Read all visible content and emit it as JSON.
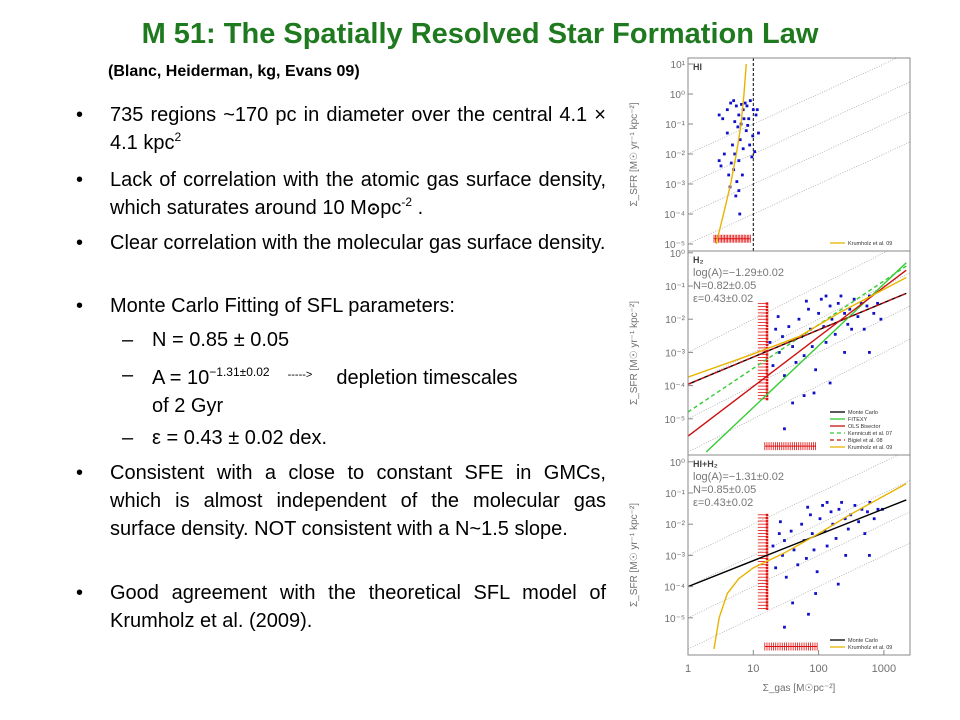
{
  "slide": {
    "title": "M 51: The Spatially Resolved Star Formation Law",
    "subtitle": "(Blanc, Heiderman, kg, Evans 09)",
    "bullets": [
      {
        "text": "735 regions ~170 pc in diameter over the central 4.1 × 4.1 kpc",
        "sup": "2"
      },
      {
        "text": "Lack of correlation with the atomic gas surface density, which saturates around 10 M",
        "sun": "⊙",
        "tail": "pc",
        "sup": "-2",
        "end": " ."
      },
      {
        "text": "Clear correlation with the molecular gas surface density."
      },
      {
        "text": "Monte Carlo Fitting of SFL parameters:"
      },
      {
        "text": "Consistent with a close to constant SFE in GMCs, which is almost independent of the molecular gas surface density. NOT consistent with a N~1.5 slope."
      },
      {
        "text": "Good agreement with the theoretical SFL model of Krumholz et al. (2009)."
      }
    ],
    "sub_bullets": [
      {
        "text": "N = 0.85 ± 0.05"
      },
      {
        "text": "A = 10",
        "sup": "−1.31±0.02",
        "arrow": "----->",
        "tail": "depletion timescales",
        "line2": "of  2 Gyr"
      },
      {
        "text": "ε = 0.43 ± 0.02 dex."
      }
    ],
    "bullet_glyph": "•",
    "dash_glyph": "–"
  },
  "chart_data": [
    {
      "type": "scatter",
      "panel": "HI",
      "title": "HI",
      "xscale": "log",
      "yscale": "log",
      "xlim": [
        1,
        2200
      ],
      "ylim": [
        1e-05,
        10
      ],
      "ylabel": "Σ_SFR [M☉ yr⁻¹ kpc⁻²]",
      "yticks": [
        "10¹",
        "10⁰",
        "10⁻¹",
        "10⁻²",
        "10⁻³",
        "10⁻⁴",
        "10⁻⁵"
      ],
      "annotations": [],
      "vline": {
        "x": 10,
        "style": "dashed",
        "color": "#000000"
      },
      "lines": [
        {
          "name": "Krumholz et al. 09",
          "color": "#e8b400",
          "dash": "",
          "points": [
            [
              2.7,
              1e-05
            ],
            [
              3.5,
              0.0001
            ],
            [
              4.5,
              0.001
            ],
            [
              5.5,
              0.01
            ],
            [
              6.5,
              0.1
            ],
            [
              7.2,
              1
            ],
            [
              7.8,
              10
            ]
          ]
        }
      ],
      "legend": [
        "Krumholz et al. 09"
      ],
      "points": [
        [
          3,
          0.2
        ],
        [
          3.4,
          0.15
        ],
        [
          4,
          0.3
        ],
        [
          4.5,
          0.5
        ],
        [
          5,
          0.6
        ],
        [
          5.5,
          0.4
        ],
        [
          6,
          0.2
        ],
        [
          6.5,
          0.1
        ],
        [
          7,
          0.3
        ],
        [
          7.5,
          0.5
        ],
        [
          8,
          0.4
        ],
        [
          8.5,
          0.15
        ],
        [
          9,
          0.6
        ],
        [
          10,
          0.3
        ],
        [
          11,
          0.2
        ],
        [
          12,
          0.05
        ],
        [
          4,
          0.05
        ],
        [
          4.8,
          0.02
        ],
        [
          5.2,
          0.01
        ],
        [
          5.8,
          0.08
        ],
        [
          6.3,
          0.03
        ],
        [
          7,
          0.015
        ],
        [
          7.8,
          0.06
        ],
        [
          8.8,
          0.02
        ],
        [
          9.5,
          0.008
        ],
        [
          10.5,
          0.012
        ],
        [
          3.2,
          0.004
        ],
        [
          3.6,
          0.01
        ],
        [
          4.2,
          0.002
        ],
        [
          4.6,
          0.005
        ],
        [
          5,
          0.003
        ],
        [
          5.6,
          0.0012
        ],
        [
          6,
          0.0006
        ],
        [
          6.8,
          0.002
        ],
        [
          5.4,
          0.0004
        ],
        [
          6.2,
          0.0001
        ],
        [
          4.4,
          0.0008
        ],
        [
          3,
          0.006
        ],
        [
          6,
          0.006
        ],
        [
          7.2,
          0.15
        ],
        [
          8.2,
          0.09
        ],
        [
          9.8,
          0.04
        ],
        [
          11.5,
          0.3
        ],
        [
          6.6,
          0.45
        ],
        [
          5.2,
          0.12
        ]
      ],
      "upper_limits": {
        "y": 1.5e-05,
        "x_range": [
          2.5,
          9
        ]
      }
    },
    {
      "type": "scatter",
      "panel": "H2",
      "title": "H₂",
      "xscale": "log",
      "yscale": "log",
      "xlim": [
        1,
        2200
      ],
      "ylim": [
        1e-05,
        10
      ],
      "ylabel": "Σ_SFR [M☉ yr⁻¹ kpc⁻²]",
      "yticks": [
        "10⁰",
        "10⁻¹",
        "10⁻²",
        "10⁻³",
        "10⁻⁴",
        "10⁻⁵"
      ],
      "annotations": [
        "log(A)=−1.29±0.02",
        "N=0.82±0.05",
        "ε=0.43±0.02"
      ],
      "lines": [
        {
          "name": "Monte Carlo",
          "color": "#000000",
          "dash": "",
          "points": [
            [
              1,
              0.0011
            ],
            [
              2200,
              0.6
            ]
          ]
        },
        {
          "name": "FITEXY",
          "color": "#33cc33",
          "dash": "",
          "points": [
            [
              1.9,
              1e-05
            ],
            [
              2200,
              5
            ]
          ]
        },
        {
          "name": "OLS Bisector",
          "color": "#cc1111",
          "dash": "",
          "points": [
            [
              1,
              3e-05
            ],
            [
              2200,
              3
            ]
          ]
        },
        {
          "name": "Kennicutt et al. 07",
          "color": "#33cc33",
          "dash": "4,3",
          "points": [
            [
              1,
              0.00016
            ],
            [
              2200,
              4
            ]
          ]
        },
        {
          "name": "Bigiel et al. 08",
          "color": "#cc1111",
          "dash": "4,3",
          "points": [
            [
              1,
              0.0011
            ],
            [
              2200,
              0.6
            ]
          ]
        },
        {
          "name": "Krumholz et al. 09",
          "color": "#e8b400",
          "dash": "",
          "points": [
            [
              1,
              0.0018
            ],
            [
              10,
              0.009
            ],
            [
              50,
              0.03
            ],
            [
              200,
              0.15
            ],
            [
              2200,
              1.8
            ]
          ]
        }
      ],
      "legend": [
        "Monte Carlo",
        "FITEXY",
        "OLS Bisector",
        "Kennicutt et al. 07",
        "Bigiel et al. 08",
        "Krumholz et al. 09"
      ],
      "points": [
        [
          18,
          0.02
        ],
        [
          20,
          0.004
        ],
        [
          22,
          0.05
        ],
        [
          25,
          0.01
        ],
        [
          28,
          0.03
        ],
        [
          30,
          0.002
        ],
        [
          35,
          0.06
        ],
        [
          40,
          0.015
        ],
        [
          45,
          0.005
        ],
        [
          50,
          0.1
        ],
        [
          55,
          0.03
        ],
        [
          60,
          0.008
        ],
        [
          70,
          0.2
        ],
        [
          75,
          0.05
        ],
        [
          80,
          0.015
        ],
        [
          90,
          0.003
        ],
        [
          100,
          0.15
        ],
        [
          110,
          0.4
        ],
        [
          120,
          0.06
        ],
        [
          130,
          0.02
        ],
        [
          150,
          0.25
        ],
        [
          160,
          0.1
        ],
        [
          180,
          0.035
        ],
        [
          200,
          0.3
        ],
        [
          220,
          0.5
        ],
        [
          250,
          0.15
        ],
        [
          280,
          0.07
        ],
        [
          300,
          0.2
        ],
        [
          350,
          0.4
        ],
        [
          400,
          0.12
        ],
        [
          450,
          0.3
        ],
        [
          500,
          0.05
        ],
        [
          550,
          0.25
        ],
        [
          600,
          0.5
        ],
        [
          700,
          0.15
        ],
        [
          800,
          0.3
        ],
        [
          900,
          0.1
        ],
        [
          60,
          0.0005
        ],
        [
          40,
          0.0003
        ],
        [
          30,
          5e-05
        ],
        [
          150,
          0.0012
        ],
        [
          250,
          0.01
        ],
        [
          600,
          0.01
        ],
        [
          85,
          0.0006
        ],
        [
          24,
          0.12
        ],
        [
          65,
          0.35
        ],
        [
          130,
          0.5
        ],
        [
          320,
          0.05
        ]
      ],
      "upper_limits_left": {
        "x": 15,
        "y_range": [
          0.0004,
          0.3
        ]
      },
      "upper_limits": {
        "y": 1.5e-05,
        "x_range": [
          15,
          90
        ]
      }
    },
    {
      "type": "scatter",
      "panel": "HI+H2",
      "title": "HI+H₂",
      "xscale": "log",
      "yscale": "log",
      "xlim": [
        1,
        2200
      ],
      "ylim": [
        1e-05,
        10
      ],
      "xlabel": "Σ_gas [M☉pc⁻²]",
      "ylabel": "Σ_SFR [M☉ yr⁻¹ kpc⁻²]",
      "xticks": [
        "1",
        "10",
        "100",
        "1000"
      ],
      "yticks": [
        "10⁰",
        "10⁻¹",
        "10⁻²",
        "10⁻³",
        "10⁻⁴",
        "10⁻⁵"
      ],
      "annotations": [
        "log(A)=−1.31±0.02",
        "N=0.85±0.05",
        "ε=0.43±0.02"
      ],
      "lines": [
        {
          "name": "Monte Carlo",
          "color": "#000000",
          "dash": "",
          "points": [
            [
              1,
              0.001
            ],
            [
              2200,
              0.6
            ]
          ]
        },
        {
          "name": "Krumholz et al. 09",
          "color": "#e8b400",
          "dash": "",
          "points": [
            [
              2.5,
              1e-05
            ],
            [
              3,
              0.0001
            ],
            [
              4,
              0.0006
            ],
            [
              6,
              0.0018
            ],
            [
              10,
              0.004
            ],
            [
              30,
              0.012
            ],
            [
              100,
              0.05
            ],
            [
              300,
              0.2
            ],
            [
              2200,
              2
            ]
          ]
        }
      ],
      "legend": [
        "Monte Carlo",
        "Krumholz et al. 09"
      ],
      "points": [
        [
          20,
          0.02
        ],
        [
          22,
          0.004
        ],
        [
          25,
          0.05
        ],
        [
          28,
          0.01
        ],
        [
          30,
          0.03
        ],
        [
          32,
          0.002
        ],
        [
          38,
          0.06
        ],
        [
          42,
          0.015
        ],
        [
          48,
          0.005
        ],
        [
          55,
          0.1
        ],
        [
          60,
          0.03
        ],
        [
          65,
          0.008
        ],
        [
          75,
          0.2
        ],
        [
          80,
          0.05
        ],
        [
          85,
          0.015
        ],
        [
          95,
          0.003
        ],
        [
          105,
          0.15
        ],
        [
          115,
          0.4
        ],
        [
          125,
          0.06
        ],
        [
          135,
          0.02
        ],
        [
          155,
          0.25
        ],
        [
          165,
          0.1
        ],
        [
          185,
          0.035
        ],
        [
          205,
          0.3
        ],
        [
          225,
          0.5
        ],
        [
          255,
          0.15
        ],
        [
          285,
          0.07
        ],
        [
          310,
          0.2
        ],
        [
          360,
          0.4
        ],
        [
          410,
          0.12
        ],
        [
          460,
          0.3
        ],
        [
          510,
          0.05
        ],
        [
          560,
          0.25
        ],
        [
          610,
          0.5
        ],
        [
          710,
          0.15
        ],
        [
          810,
          0.3
        ],
        [
          950,
          0.3
        ],
        [
          70,
          0.00013
        ],
        [
          40,
          0.0003
        ],
        [
          30,
          5e-05
        ],
        [
          200,
          0.0012
        ],
        [
          260,
          0.01
        ],
        [
          600,
          0.01
        ],
        [
          90,
          0.0006
        ],
        [
          26,
          0.12
        ],
        [
          68,
          0.35
        ],
        [
          135,
          0.5
        ]
      ],
      "upper_limits_left": {
        "x": 15,
        "y_range": [
          0.0002,
          0.2
        ]
      },
      "upper_limits": {
        "y": 1.2e-05,
        "x_range": [
          15,
          95
        ]
      }
    }
  ],
  "colors": {
    "title": "#1f7a1f",
    "points": "#1010c8",
    "limits": "#e01010",
    "grid": "#a0a0a0",
    "axis_text": "#707070"
  }
}
